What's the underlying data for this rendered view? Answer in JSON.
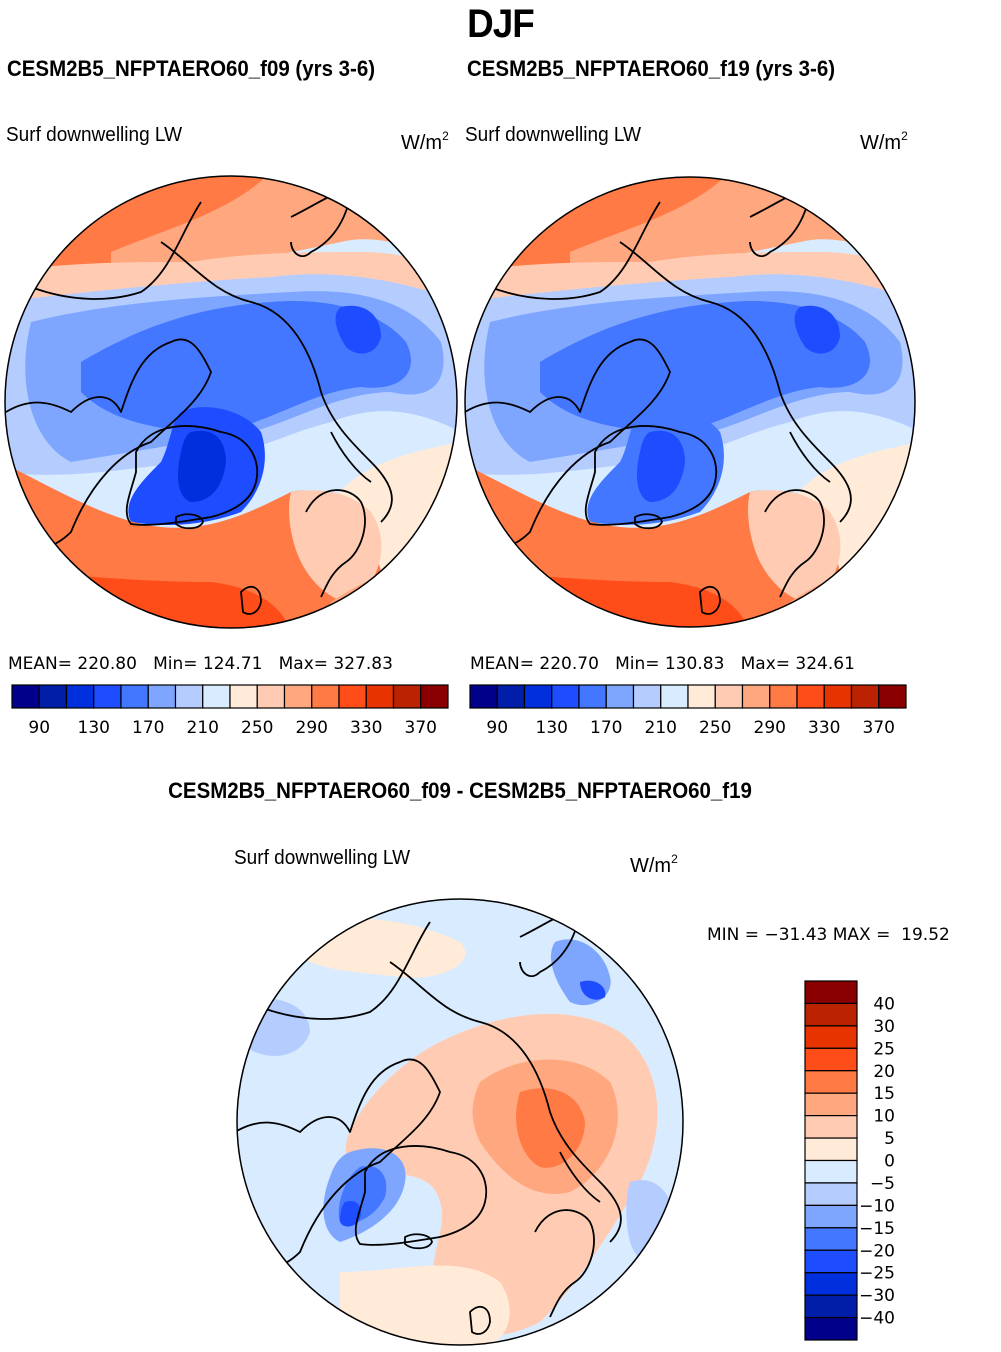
{
  "header": {
    "season": "DJF"
  },
  "panels": [
    {
      "id": "f09",
      "title": "CESM2B5_NFPTAERO60_f09 (yrs 3-6)",
      "variable": "Surf downwelling LW",
      "units_base": "W/m",
      "units_exp": "2",
      "stats_text": "MEAN= 220.80   Min= 124.71   Max= 327.83",
      "mean": 220.8,
      "min": 124.71,
      "max": 327.83
    },
    {
      "id": "f19",
      "title": "CESM2B5_NFPTAERO60_f19 (yrs 3-6)",
      "variable": "Surf downwelling LW",
      "units_base": "W/m",
      "units_exp": "2",
      "stats_text": "MEAN= 220.70   Min= 130.83   Max= 324.61",
      "mean": 220.7,
      "min": 130.83,
      "max": 324.61
    }
  ],
  "difference": {
    "title": "CESM2B5_NFPTAERO60_f09 - CESM2B5_NFPTAERO60_f19",
    "variable": "Surf downwelling LW",
    "units_base": "W/m",
    "units_exp": "2",
    "stats_text": "MIN = −31.43 MAX =  19.52",
    "min": -31.43,
    "max": 19.52
  },
  "chart_data": [
    {
      "type": "heatmap",
      "projection": "north-polar-stereographic",
      "title": "CESM2B5_NFPTAERO60_f09 (yrs 3-6)",
      "variable": "Surf downwelling LW",
      "units": "W/m^2",
      "levels": [
        90,
        110,
        130,
        150,
        170,
        190,
        210,
        230,
        250,
        270,
        290,
        310,
        330,
        350,
        370
      ],
      "colorbar_tick_labels": [
        "90",
        "130",
        "170",
        "210",
        "250",
        "290",
        "330",
        "370"
      ],
      "colors": [
        "#00008a",
        "#001ea8",
        "#0030dd",
        "#1e4dff",
        "#4477ff",
        "#7ea6ff",
        "#b5ccff",
        "#d8ebff",
        "#ffebd8",
        "#ffccb3",
        "#ffa880",
        "#ff7a45",
        "#ff4d1a",
        "#e63300",
        "#bb2200",
        "#8a0000"
      ],
      "colorbar_orientation": "horizontal",
      "regions": [
        {
          "name": "background-ocean-periphery",
          "band": 7
        },
        {
          "name": "north-pacific-west",
          "band": 11
        },
        {
          "name": "north-pacific-east",
          "band": 10
        },
        {
          "name": "alaska-bering",
          "band": 9
        },
        {
          "name": "eurasia-south",
          "band": 8
        },
        {
          "name": "siberia-outer",
          "band": 6
        },
        {
          "name": "arctic-ring",
          "band": 5
        },
        {
          "name": "arctic-ocean",
          "band": 4
        },
        {
          "name": "siberia-core",
          "band": 3
        },
        {
          "name": "greenland-outer",
          "band": 3
        },
        {
          "name": "greenland-core",
          "band": 2
        },
        {
          "name": "north-atlantic",
          "band": 11
        },
        {
          "name": "atlantic-south",
          "band": 12
        },
        {
          "name": "scandinavia",
          "band": 9
        },
        {
          "name": "europe-east",
          "band": 10
        }
      ],
      "stats": {
        "mean": 220.8,
        "min": 124.71,
        "max": 327.83
      }
    },
    {
      "type": "heatmap",
      "projection": "north-polar-stereographic",
      "title": "CESM2B5_NFPTAERO60_f19 (yrs 3-6)",
      "variable": "Surf downwelling LW",
      "units": "W/m^2",
      "levels": [
        90,
        110,
        130,
        150,
        170,
        190,
        210,
        230,
        250,
        270,
        290,
        310,
        330,
        350,
        370
      ],
      "colorbar_tick_labels": [
        "90",
        "130",
        "170",
        "210",
        "250",
        "290",
        "330",
        "370"
      ],
      "colors": [
        "#00008a",
        "#001ea8",
        "#0030dd",
        "#1e4dff",
        "#4477ff",
        "#7ea6ff",
        "#b5ccff",
        "#d8ebff",
        "#ffebd8",
        "#ffccb3",
        "#ffa880",
        "#ff7a45",
        "#ff4d1a",
        "#e63300",
        "#bb2200",
        "#8a0000"
      ],
      "colorbar_orientation": "horizontal",
      "regions": [
        {
          "name": "background-ocean-periphery",
          "band": 7
        },
        {
          "name": "north-pacific-west",
          "band": 11
        },
        {
          "name": "north-pacific-east",
          "band": 10
        },
        {
          "name": "alaska-bering",
          "band": 9
        },
        {
          "name": "eurasia-south",
          "band": 8
        },
        {
          "name": "siberia-outer",
          "band": 6
        },
        {
          "name": "arctic-ring",
          "band": 5
        },
        {
          "name": "arctic-ocean",
          "band": 4
        },
        {
          "name": "siberia-core",
          "band": 3
        },
        {
          "name": "greenland-outer",
          "band": 4
        },
        {
          "name": "greenland-core",
          "band": 3
        },
        {
          "name": "north-atlantic",
          "band": 11
        },
        {
          "name": "atlantic-south",
          "band": 12
        },
        {
          "name": "scandinavia",
          "band": 9
        },
        {
          "name": "europe-east",
          "band": 10
        }
      ],
      "stats": {
        "mean": 220.7,
        "min": 130.83,
        "max": 324.61
      }
    },
    {
      "type": "heatmap",
      "projection": "north-polar-stereographic",
      "title": "CESM2B5_NFPTAERO60_f09 - CESM2B5_NFPTAERO60_f19",
      "variable": "Surf downwelling LW",
      "units": "W/m^2",
      "levels": [
        -40,
        -30,
        -25,
        -20,
        -15,
        -10,
        -5,
        0,
        5,
        10,
        15,
        20,
        25,
        30,
        40
      ],
      "colorbar_tick_labels": [
        "40",
        "30",
        "25",
        "20",
        "15",
        "10",
        "5",
        "0",
        "−5",
        "−10",
        "−15",
        "−20",
        "−25",
        "−30",
        "−40"
      ],
      "colors": [
        "#00008a",
        "#001ea8",
        "#0030dd",
        "#1e4dff",
        "#4477ff",
        "#7ea6ff",
        "#b5ccff",
        "#d8ebff",
        "#ffebd8",
        "#ffccb3",
        "#ffa880",
        "#ff7a45",
        "#ff4d1a",
        "#e63300",
        "#bb2200",
        "#8a0000"
      ],
      "colorbar_orientation": "vertical",
      "regions": [
        {
          "name": "background",
          "band": 7
        },
        {
          "name": "arctic-ocean-warm",
          "band": 9
        },
        {
          "name": "siberia-warm",
          "band": 10
        },
        {
          "name": "kara-sea-warm",
          "band": 11
        },
        {
          "name": "north-atlantic-mild",
          "band": 8
        },
        {
          "name": "pacific-mild",
          "band": 8
        },
        {
          "name": "greenland-cold",
          "band": 5
        },
        {
          "name": "greenland-core-cold",
          "band": 4
        },
        {
          "name": "greenland-min",
          "band": 3
        },
        {
          "name": "kamchatka-cold",
          "band": 5
        },
        {
          "name": "okhotsk-min",
          "band": 3
        },
        {
          "name": "canada-west-cold",
          "band": 6
        },
        {
          "name": "asia-south-cold",
          "band": 6
        }
      ],
      "stats": {
        "min": -31.43,
        "max": 19.52
      }
    }
  ]
}
